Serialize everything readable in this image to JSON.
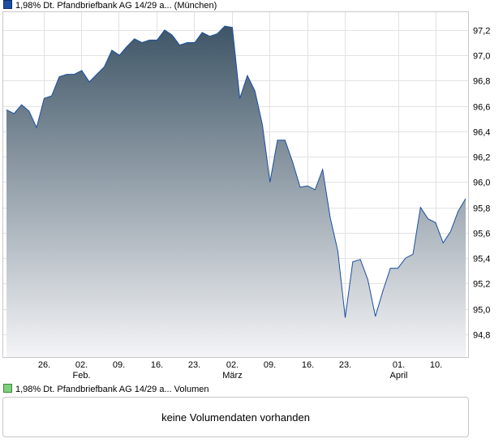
{
  "price_legend": {
    "label": "1,98% Dt. Pfandbriefbank AG 14/29 a... (München)",
    "color": "#1a4fa0"
  },
  "volume_legend": {
    "label": "1,98% Dt. Pfandbriefbank AG 14/29 a... Volumen",
    "color": "#7fcf7f"
  },
  "volume_panel": {
    "message": "keine Volumendaten vorhanden"
  },
  "chart_data": {
    "type": "area",
    "series": [
      {
        "name": "1,98% Dt. Pfandbriefbank AG 14/29 a... (München)",
        "values": [
          96.57,
          96.54,
          96.61,
          96.56,
          96.43,
          96.66,
          96.68,
          96.83,
          96.85,
          96.85,
          96.88,
          96.79,
          96.85,
          96.91,
          97.04,
          97.0,
          97.07,
          97.13,
          97.1,
          97.12,
          97.12,
          97.2,
          97.16,
          97.08,
          97.1,
          97.1,
          97.18,
          97.15,
          97.17,
          97.23,
          97.22,
          96.66,
          96.84,
          96.72,
          96.45,
          96.0,
          96.33,
          96.33,
          96.16,
          95.96,
          95.97,
          95.94,
          96.1,
          95.72,
          95.46,
          94.93,
          95.37,
          95.39,
          95.23,
          94.94,
          95.14,
          95.32,
          95.32,
          95.4,
          95.43,
          95.8,
          95.71,
          95.68,
          95.52,
          95.61,
          95.77,
          95.87
        ]
      }
    ],
    "x_ticks": [
      "26.",
      "02.",
      "09.",
      "16.",
      "23.",
      "02.",
      "09.",
      "16.",
      "23.",
      "01.",
      "10."
    ],
    "x_month_labels": [
      "Feb.",
      "März",
      "April"
    ],
    "y_ticks": [
      "94,8",
      "95,0",
      "95,2",
      "95,4",
      "95,6",
      "95,8",
      "96,0",
      "96,2",
      "96,4",
      "96,6",
      "96,8",
      "97,0",
      "97,2"
    ],
    "ylim": [
      94.62,
      97.34
    ],
    "grid": true,
    "line_color": "#1a4fa0",
    "fill_top_color": "#3e5566",
    "fill_bottom_color": "#f4f4f6"
  }
}
